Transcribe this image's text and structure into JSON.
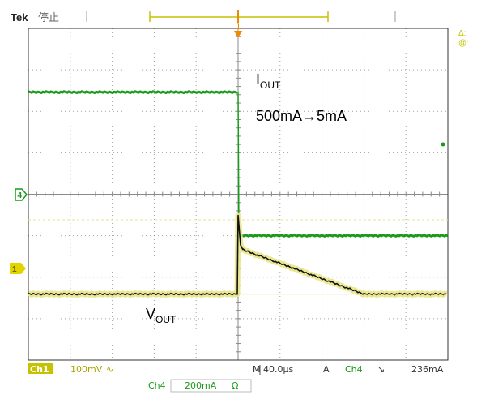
{
  "header": {
    "brand": "Tek",
    "status": "停止"
  },
  "markers": {
    "trigger_marker": "T",
    "ch4_marker": "4",
    "ch1_marker": "1",
    "delta_symbol": "Δ:",
    "at_symbol": "@:"
  },
  "annotations": {
    "iout_main": "I",
    "iout_sub": "OUT",
    "step": "500mA→5mA",
    "vout_main": "V",
    "vout_sub": "OUT"
  },
  "footer": {
    "ch1_label": "Ch1",
    "ch1_scale": "100mV",
    "ch1_coupling": "∿",
    "timebase": "M 40.0µs",
    "trig_mode": "A",
    "trig_source": "Ch4",
    "trig_slope": "↘",
    "trig_level": "236mA",
    "ch4_label": "Ch4",
    "ch4_scale": "200mA",
    "ch4_coupling": "Ω"
  },
  "colors": {
    "ch4_trace": "#1a9a1a",
    "ch1_highlight": "#e9e58a",
    "ch1_trace": "#111111",
    "trigger": "#ef8a00",
    "grid": "#7a7a7a",
    "ch1_box": "#c6c200"
  },
  "chart_data": {
    "type": "line",
    "x": {
      "divisions": 10,
      "unit": "µs",
      "per_div": 40.0,
      "trigger_div": 5
    },
    "y": {
      "divisions": 8
    },
    "series": [
      {
        "channel": "Ch4",
        "scale": "200mA",
        "before_level_div": 6.46,
        "after_level_div": 3.0
      },
      {
        "channel": "Ch1",
        "scale": "100mV",
        "baseline_div": 1.59,
        "spike_div": 3.5,
        "step_div": 2.66,
        "settle_time_div": 8.0,
        "final_div": 1.59
      }
    ]
  }
}
